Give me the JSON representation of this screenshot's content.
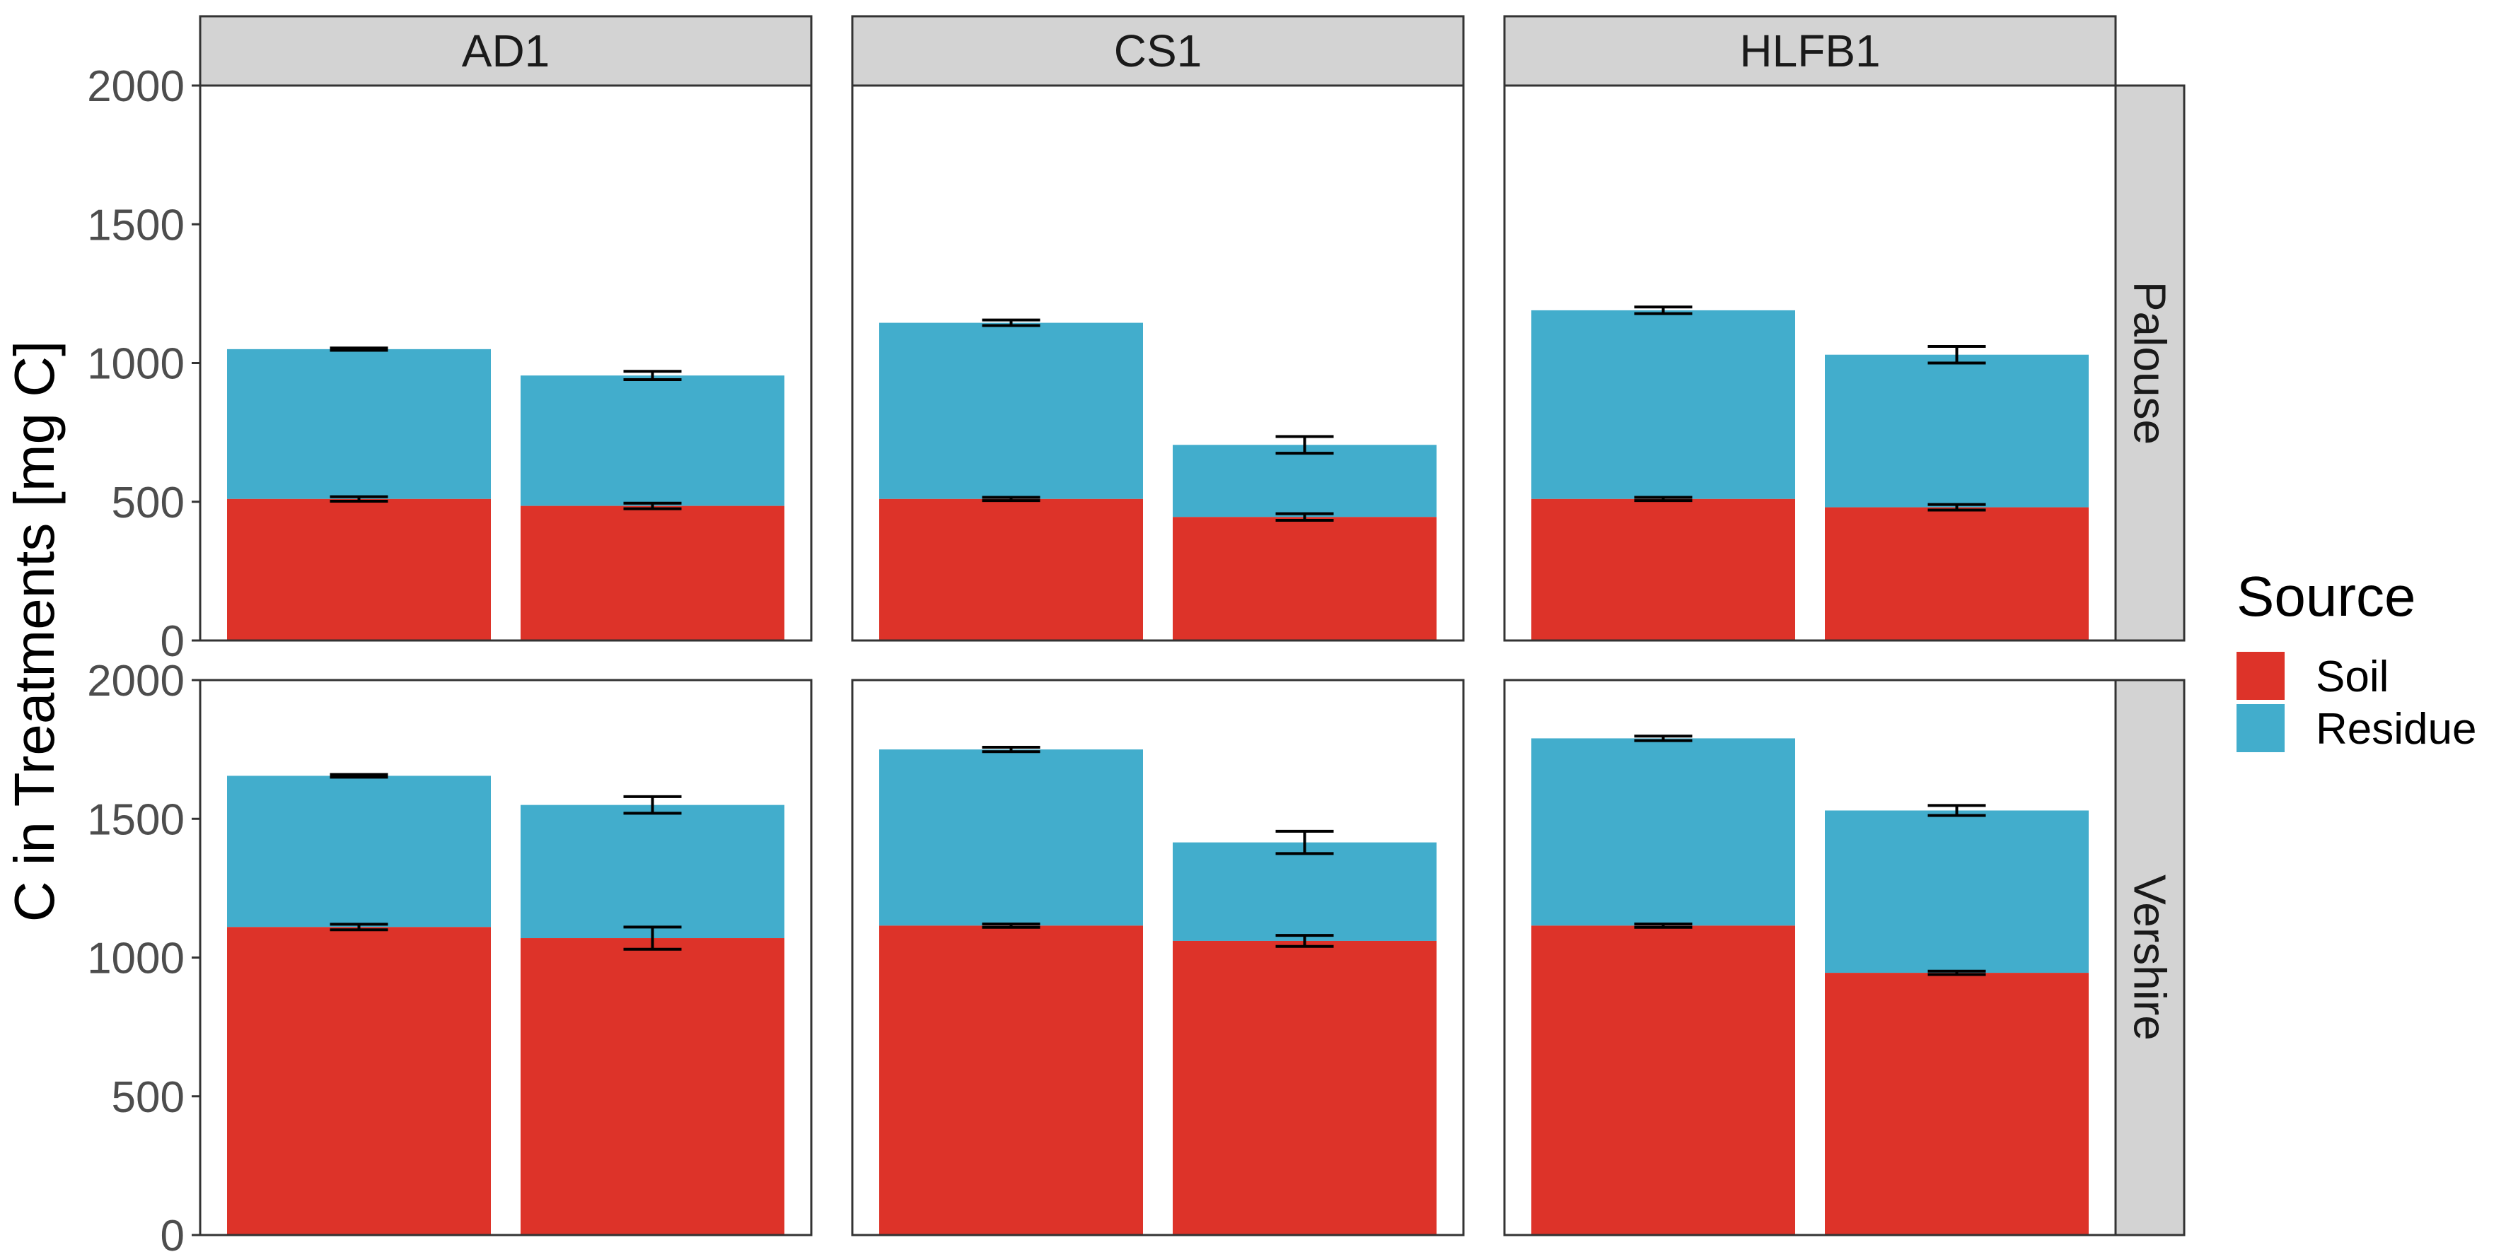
{
  "chart_data": {
    "type": "bar",
    "stacked": true,
    "ylabel": "C in Treatments [mg C]",
    "xlabel": "",
    "ylim": [
      0,
      2000
    ],
    "yticks": [
      0,
      500,
      1000,
      1500,
      2000
    ],
    "grid": false,
    "facet_columns": [
      "AD1",
      "CS1",
      "HLFB1"
    ],
    "facet_rows": [
      "Palouse",
      "Vershire"
    ],
    "legend": {
      "title": "Source",
      "position": "right",
      "entries": [
        {
          "label": "Soil",
          "color": "#dd3329"
        },
        {
          "label": "Residue",
          "color": "#42adcc"
        }
      ]
    },
    "panels": [
      {
        "row": "Palouse",
        "col": "AD1",
        "bars": [
          {
            "soil": 510,
            "soil_err": 8,
            "total": 1050,
            "total_err": 4
          },
          {
            "soil": 485,
            "soil_err": 10,
            "total": 955,
            "total_err": 15
          }
        ]
      },
      {
        "row": "Palouse",
        "col": "CS1",
        "bars": [
          {
            "soil": 510,
            "soil_err": 6,
            "total": 1145,
            "total_err": 10
          },
          {
            "soil": 445,
            "soil_err": 12,
            "total": 705,
            "total_err": 30
          }
        ]
      },
      {
        "row": "Palouse",
        "col": "HLFB1",
        "bars": [
          {
            "soil": 510,
            "soil_err": 6,
            "total": 1190,
            "total_err": 12
          },
          {
            "soil": 480,
            "soil_err": 10,
            "total": 1030,
            "total_err": 30
          }
        ]
      },
      {
        "row": "Vershire",
        "col": "AD1",
        "bars": [
          {
            "soil": 1110,
            "soil_err": 10,
            "total": 1655,
            "total_err": 5
          },
          {
            "soil": 1070,
            "soil_err": 40,
            "total": 1550,
            "total_err": 30
          }
        ]
      },
      {
        "row": "Vershire",
        "col": "CS1",
        "bars": [
          {
            "soil": 1115,
            "soil_err": 6,
            "total": 1750,
            "total_err": 8
          },
          {
            "soil": 1060,
            "soil_err": 20,
            "total": 1415,
            "total_err": 40
          }
        ]
      },
      {
        "row": "Vershire",
        "col": "HLFB1",
        "bars": [
          {
            "soil": 1115,
            "soil_err": 6,
            "total": 1790,
            "total_err": 8
          },
          {
            "soil": 945,
            "soil_err": 6,
            "total": 1530,
            "total_err": 18
          }
        ]
      }
    ]
  }
}
